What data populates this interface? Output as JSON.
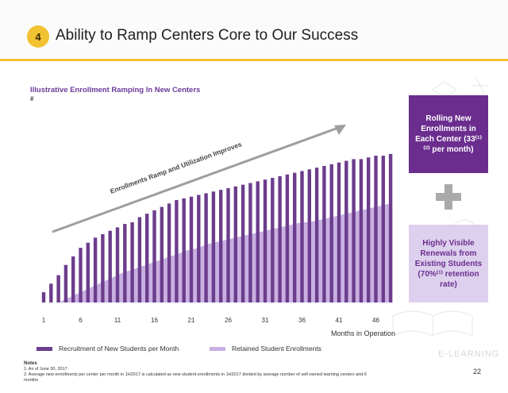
{
  "header": {
    "number": "4",
    "title": "Ability to Ramp Centers Core to Our Success"
  },
  "chart_data": {
    "type": "bar",
    "title": "Illustrative Enrollment Ramping In New Centers",
    "unit": "#",
    "xlabel": "Months in Operation",
    "x_tick_labels": [
      "1",
      "6",
      "11",
      "16",
      "21",
      "26",
      "31",
      "36",
      "41",
      "46"
    ],
    "categories": [
      1,
      2,
      3,
      4,
      5,
      6,
      7,
      8,
      9,
      10,
      11,
      12,
      13,
      14,
      15,
      16,
      17,
      18,
      19,
      20,
      21,
      22,
      23,
      24,
      25,
      26,
      27,
      28,
      29,
      30,
      31,
      32,
      33,
      34,
      35,
      36,
      37,
      38,
      39,
      40,
      41,
      42,
      43,
      44,
      45,
      46,
      47,
      48
    ],
    "ylim": [
      0,
      100
    ],
    "series": [
      {
        "name": "Recruitment of New Students per Month",
        "color": "#6b3d8c",
        "values": [
          6,
          11,
          16,
          22,
          27,
          32,
          35,
          38,
          40,
          42,
          44,
          46,
          47,
          50,
          52,
          54,
          56,
          58,
          60,
          61,
          62,
          63,
          64,
          65,
          66,
          67,
          68,
          69,
          70,
          71,
          72,
          73,
          74,
          75,
          76,
          77,
          78,
          79,
          80,
          81,
          82,
          83,
          84,
          84,
          85,
          86,
          86,
          87
        ]
      },
      {
        "name": "Retained Student Enrollments",
        "color": "#c9b0e2",
        "values": [
          0,
          0,
          0,
          2,
          4,
          6,
          8,
          10,
          12,
          14,
          16,
          18,
          19,
          21,
          22,
          24,
          25,
          27,
          28,
          30,
          31,
          32,
          34,
          35,
          36,
          37,
          38,
          39,
          40,
          41,
          42,
          43,
          44,
          45,
          46,
          47,
          47,
          48,
          49,
          50,
          51,
          52,
          53,
          54,
          55,
          56,
          57,
          58
        ]
      }
    ],
    "annotation": "Enrollments Ramp and Utilization Improves",
    "grid": false,
    "legend": "bottom"
  },
  "callouts": {
    "box1": "Rolling New Enrollments in Each Center (33⁽¹⁾⁽²⁾ per month)",
    "box2": "Highly Visible Renewals from Existing Students (70%⁽¹⁾ retention rate)"
  },
  "notes": {
    "title": "Notes",
    "n1": "1. As of June 30, 2017",
    "n2": "2. Average new enrollments per center per month in 1H2017 is calculated as new student enrollments in 1H2017 divided by average number of self-owned learning centers and 6 months"
  },
  "page_number": "22",
  "watermark": "E-LEARNING",
  "colors": {
    "accent": "#f1c232",
    "purple_dark": "#6b2d8e",
    "purple_light": "#ddd0ee"
  }
}
